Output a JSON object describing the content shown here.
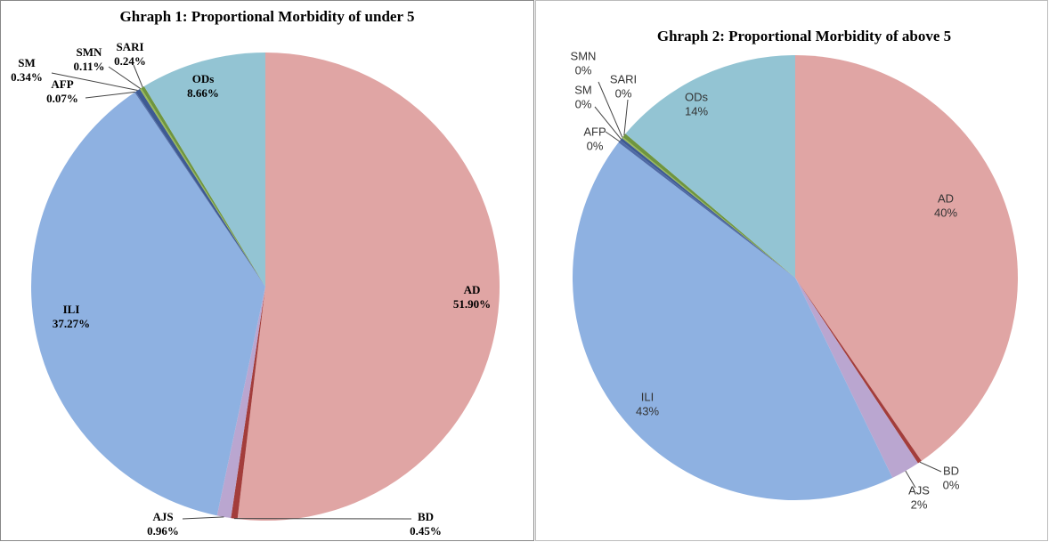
{
  "chart_data": [
    {
      "type": "pie",
      "title": "Ghraph 1: Proportional Morbidity of under 5",
      "categories": [
        "AD",
        "BD",
        "AJS",
        "ILI",
        "AFP",
        "SM",
        "SMN",
        "SARI",
        "ODs"
      ],
      "values": [
        51.9,
        0.45,
        0.96,
        37.27,
        0.07,
        0.34,
        0.11,
        0.24,
        8.66
      ],
      "value_labels": [
        "51.90%",
        "0.45%",
        "0.96%",
        "37.27%",
        "0.07%",
        "0.34%",
        "0.11%",
        "0.24%",
        "8.66%"
      ],
      "colors": [
        "#e0a5a4",
        "#a33d3b",
        "#baa6d0",
        "#8eb1e1",
        "#4f6aa5",
        "#3e5a93",
        "#9bbb59",
        "#6f953f",
        "#93c4d3"
      ]
    },
    {
      "type": "pie",
      "title": "Ghraph 2: Proportional Morbidity of above 5",
      "categories": [
        "AD",
        "BD",
        "AJS",
        "ILI",
        "AFP",
        "SM",
        "SMN",
        "SARI",
        "ODs"
      ],
      "values": [
        40.4,
        0.3,
        2.1,
        42.6,
        0.2,
        0.2,
        0.1,
        0.3,
        13.8
      ],
      "value_labels": [
        "40%",
        "0%",
        "2%",
        "43%",
        "0%",
        "0%",
        "0%",
        "0%",
        "14%"
      ],
      "colors": [
        "#e0a5a4",
        "#a33d3b",
        "#baa6d0",
        "#8eb1e1",
        "#4f6aa5",
        "#3e5a93",
        "#9bbb59",
        "#6f953f",
        "#93c4d3"
      ]
    }
  ]
}
